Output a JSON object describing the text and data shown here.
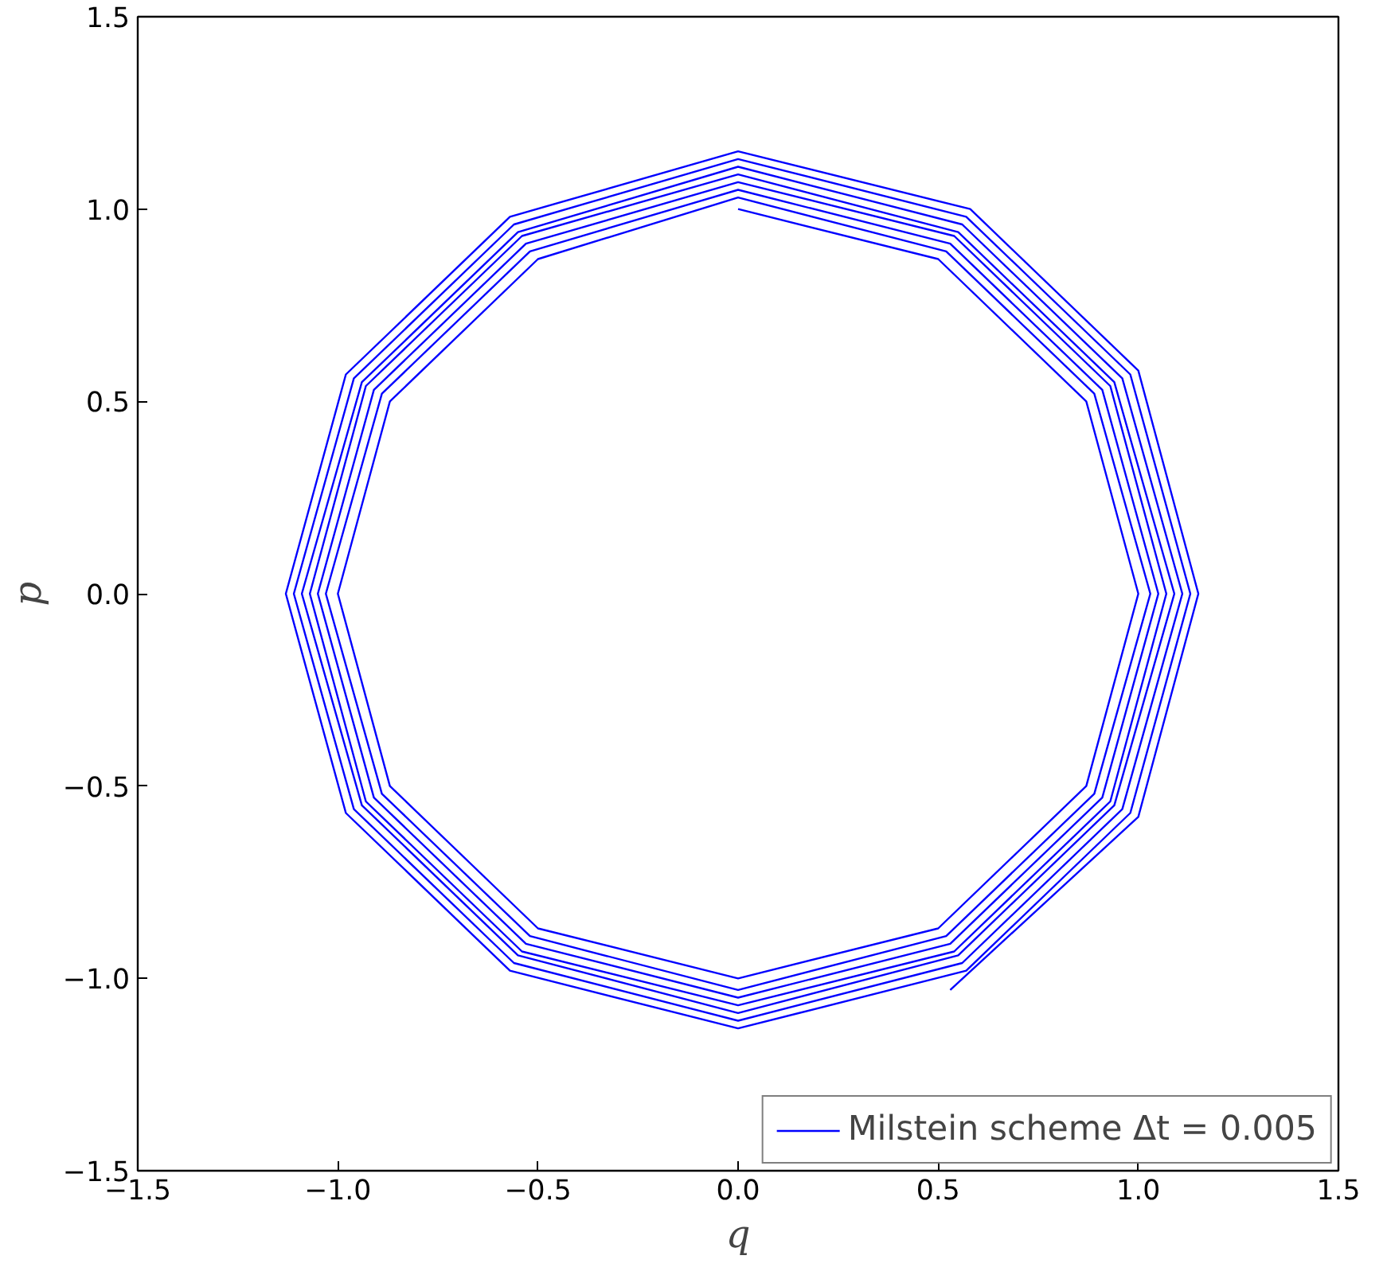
{
  "chart_data": {
    "type": "line",
    "xlabel": "q",
    "ylabel": "p",
    "xlim": [
      -1.5,
      1.5
    ],
    "ylim": [
      -1.5,
      1.5
    ],
    "xticks": [
      {
        "value": -1.5,
        "label": "−1.5"
      },
      {
        "value": -1.0,
        "label": "−1.0"
      },
      {
        "value": -0.5,
        "label": "−0.5"
      },
      {
        "value": 0.0,
        "label": "0.0"
      },
      {
        "value": 0.5,
        "label": "0.5"
      },
      {
        "value": 1.0,
        "label": "1.0"
      },
      {
        "value": 1.5,
        "label": "1.5"
      }
    ],
    "yticks": [
      {
        "value": -1.5,
        "label": "−1.5"
      },
      {
        "value": -1.0,
        "label": "−1.0"
      },
      {
        "value": -0.5,
        "label": "−0.5"
      },
      {
        "value": 0.0,
        "label": "0.0"
      },
      {
        "value": 0.5,
        "label": "0.5"
      },
      {
        "value": 1.0,
        "label": "1.0"
      },
      {
        "value": 1.5,
        "label": "1.5"
      }
    ],
    "grid": false,
    "legend": "bottom right",
    "marker": "none",
    "line_style": "solid",
    "series": [
      {
        "name": "Milstein scheme Δt = 0.005",
        "color": "#0000ff",
        "x": [
          0,
          0.5,
          0.87,
          1,
          0.87,
          0.5,
          0,
          -0.5,
          -0.87,
          -1,
          -0.87,
          -0.5,
          0,
          0.52,
          0.89,
          1.03,
          0.89,
          0.52,
          0,
          -0.52,
          -0.89,
          -1.03,
          -0.89,
          -0.52,
          0,
          0.53,
          0.91,
          1.05,
          0.91,
          0.53,
          0,
          -0.53,
          -0.91,
          -1.05,
          -0.91,
          -0.53,
          0,
          0.54,
          0.93,
          1.07,
          0.93,
          0.54,
          0,
          -0.54,
          -0.93,
          -1.07,
          -0.93,
          -0.54,
          0,
          0.55,
          0.94,
          1.09,
          0.94,
          0.55,
          0,
          -0.55,
          -0.94,
          -1.09,
          -0.94,
          -0.55,
          0,
          0.56,
          0.96,
          1.11,
          0.96,
          0.56,
          0,
          -0.56,
          -0.96,
          -1.11,
          -0.96,
          -0.56,
          0,
          0.57,
          0.98,
          1.13,
          0.98,
          0.57,
          0,
          -0.57,
          -0.98,
          -1.13,
          -0.98,
          -0.57,
          0,
          0.58,
          1.0,
          1.15,
          1.0,
          0.53
        ],
        "values": [
          1,
          0.87,
          0.5,
          0,
          -0.5,
          -0.87,
          -1,
          -0.87,
          -0.5,
          0,
          0.5,
          0.87,
          1.03,
          0.89,
          0.52,
          0,
          -0.52,
          -0.89,
          -1.03,
          -0.89,
          -0.52,
          0,
          0.52,
          0.89,
          1.05,
          0.91,
          0.53,
          0,
          -0.53,
          -0.91,
          -1.05,
          -0.91,
          -0.53,
          0,
          0.53,
          0.91,
          1.07,
          0.93,
          0.54,
          0,
          -0.54,
          -0.93,
          -1.07,
          -0.93,
          -0.54,
          0,
          0.54,
          0.93,
          1.09,
          0.94,
          0.55,
          0,
          -0.55,
          -0.94,
          -1.09,
          -0.94,
          -0.55,
          0,
          0.55,
          0.94,
          1.11,
          0.96,
          0.56,
          0,
          -0.56,
          -0.96,
          -1.11,
          -0.96,
          -0.56,
          0,
          0.56,
          0.96,
          1.13,
          0.98,
          0.57,
          0,
          -0.57,
          -0.98,
          -1.13,
          -0.98,
          -0.57,
          0,
          0.57,
          0.98,
          1.15,
          1.0,
          0.58,
          0,
          -0.58,
          -1.03
        ]
      }
    ]
  }
}
